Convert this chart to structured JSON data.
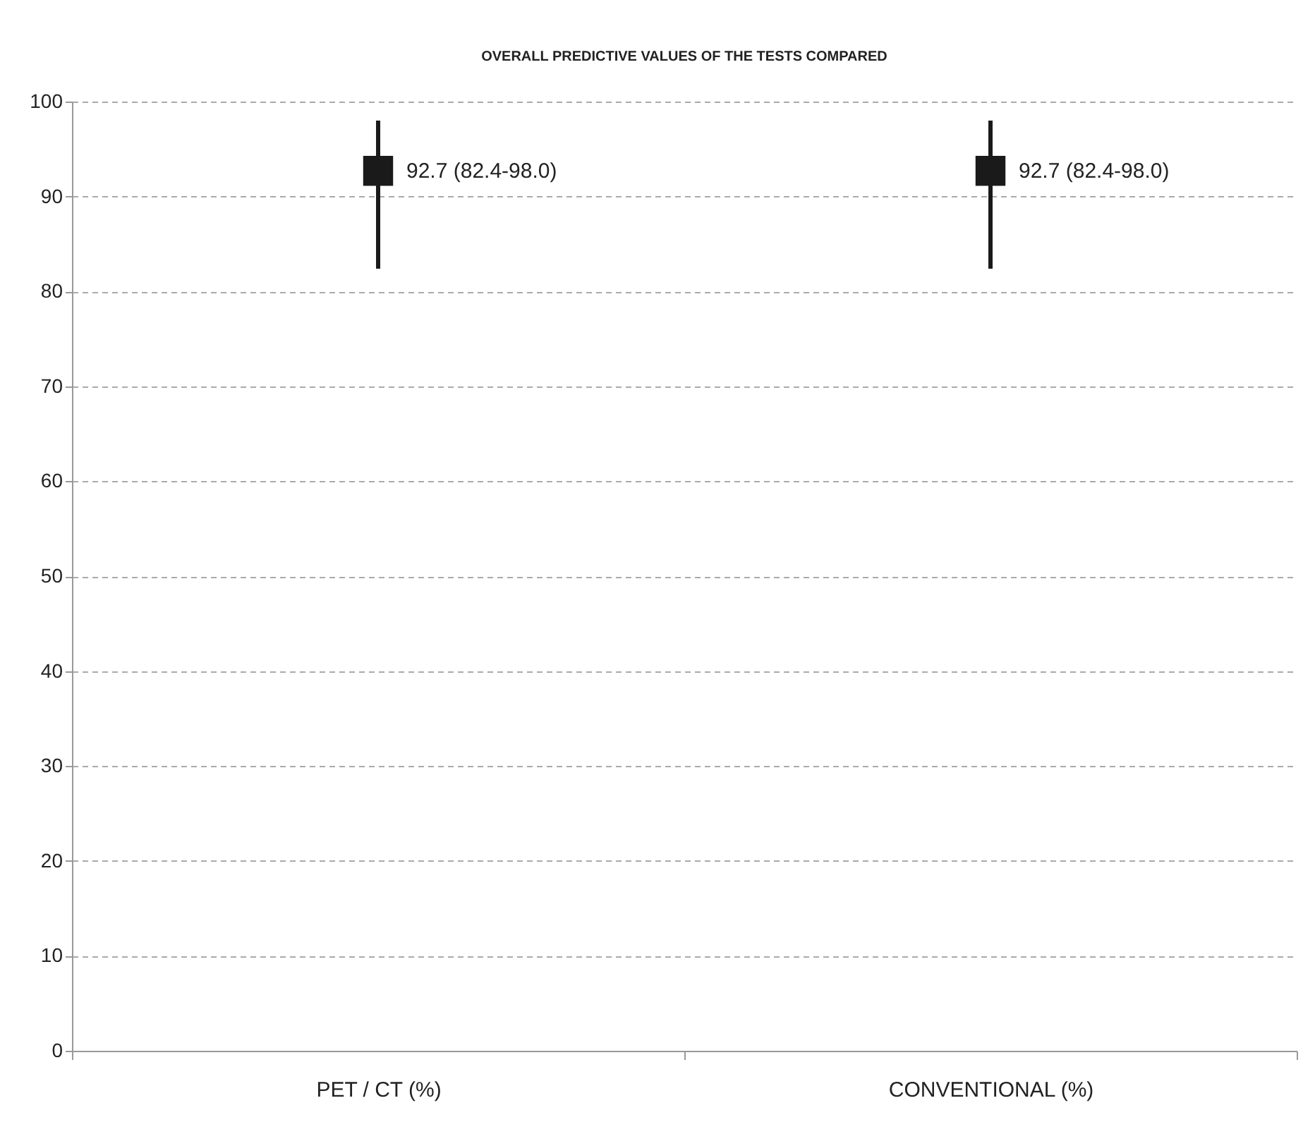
{
  "chart_data": {
    "type": "scatter",
    "title": "OVERALL PREDICTIVE VALUES OF THE TESTS COMPARED",
    "categories": [
      "PET / CT (%)",
      "CONVENTIONAL (%)"
    ],
    "series": [
      {
        "color": "#1a1a1a",
        "values": [
          92.7,
          92.7
        ],
        "errors": [
          [
            82.4,
            98.0
          ],
          [
            82.4,
            98.0
          ]
        ],
        "value_labels": [
          "92.7 (82.4-98.0)",
          "92.7 (82.4-98.0)"
        ]
      }
    ],
    "ylim": [
      0,
      100
    ],
    "yticks": [
      0,
      10,
      20,
      30,
      40,
      50,
      60,
      70,
      80,
      90,
      100
    ],
    "grid": "y",
    "marker": "square"
  }
}
